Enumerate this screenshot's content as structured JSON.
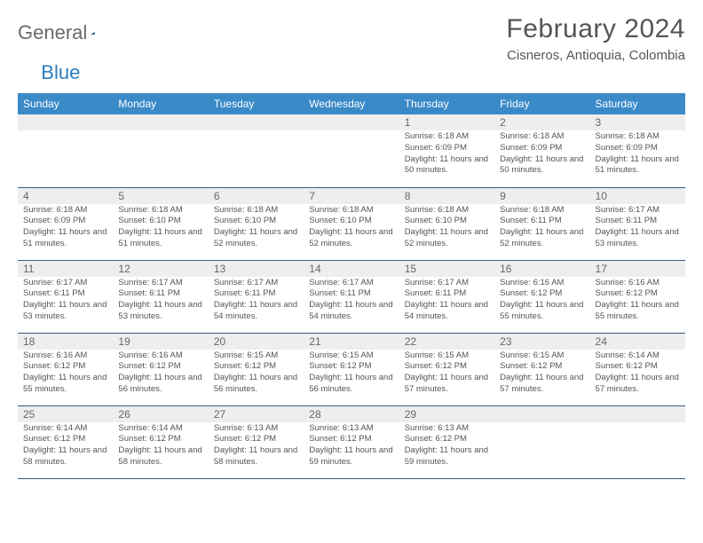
{
  "logo": {
    "word1": "General",
    "word2": "Blue",
    "triangle_color": "#2d7dbd"
  },
  "title": "February 2024",
  "location": "Cisneros, Antioquia, Colombia",
  "header": {
    "background": "#3a8ac8",
    "text_color": "#ffffff",
    "days": [
      "Sunday",
      "Monday",
      "Tuesday",
      "Wednesday",
      "Thursday",
      "Friday",
      "Saturday"
    ]
  },
  "grid": {
    "daynum_bg": "#eeeeee",
    "border_color": "#3a5a7a",
    "body_text_color": "#555555",
    "font_size_label": 12,
    "font_size_body": 9.5
  },
  "weeks": [
    [
      {
        "n": "",
        "lines": []
      },
      {
        "n": "",
        "lines": []
      },
      {
        "n": "",
        "lines": []
      },
      {
        "n": "",
        "lines": []
      },
      {
        "n": "1",
        "lines": [
          "Sunrise: 6:18 AM",
          "Sunset: 6:09 PM",
          "Daylight: 11 hours and 50 minutes."
        ]
      },
      {
        "n": "2",
        "lines": [
          "Sunrise: 6:18 AM",
          "Sunset: 6:09 PM",
          "Daylight: 11 hours and 50 minutes."
        ]
      },
      {
        "n": "3",
        "lines": [
          "Sunrise: 6:18 AM",
          "Sunset: 6:09 PM",
          "Daylight: 11 hours and 51 minutes."
        ]
      }
    ],
    [
      {
        "n": "4",
        "lines": [
          "Sunrise: 6:18 AM",
          "Sunset: 6:09 PM",
          "Daylight: 11 hours and 51 minutes."
        ]
      },
      {
        "n": "5",
        "lines": [
          "Sunrise: 6:18 AM",
          "Sunset: 6:10 PM",
          "Daylight: 11 hours and 51 minutes."
        ]
      },
      {
        "n": "6",
        "lines": [
          "Sunrise: 6:18 AM",
          "Sunset: 6:10 PM",
          "Daylight: 11 hours and 52 minutes."
        ]
      },
      {
        "n": "7",
        "lines": [
          "Sunrise: 6:18 AM",
          "Sunset: 6:10 PM",
          "Daylight: 11 hours and 52 minutes."
        ]
      },
      {
        "n": "8",
        "lines": [
          "Sunrise: 6:18 AM",
          "Sunset: 6:10 PM",
          "Daylight: 11 hours and 52 minutes."
        ]
      },
      {
        "n": "9",
        "lines": [
          "Sunrise: 6:18 AM",
          "Sunset: 6:11 PM",
          "Daylight: 11 hours and 52 minutes."
        ]
      },
      {
        "n": "10",
        "lines": [
          "Sunrise: 6:17 AM",
          "Sunset: 6:11 PM",
          "Daylight: 11 hours and 53 minutes."
        ]
      }
    ],
    [
      {
        "n": "11",
        "lines": [
          "Sunrise: 6:17 AM",
          "Sunset: 6:11 PM",
          "Daylight: 11 hours and 53 minutes."
        ]
      },
      {
        "n": "12",
        "lines": [
          "Sunrise: 6:17 AM",
          "Sunset: 6:11 PM",
          "Daylight: 11 hours and 53 minutes."
        ]
      },
      {
        "n": "13",
        "lines": [
          "Sunrise: 6:17 AM",
          "Sunset: 6:11 PM",
          "Daylight: 11 hours and 54 minutes."
        ]
      },
      {
        "n": "14",
        "lines": [
          "Sunrise: 6:17 AM",
          "Sunset: 6:11 PM",
          "Daylight: 11 hours and 54 minutes."
        ]
      },
      {
        "n": "15",
        "lines": [
          "Sunrise: 6:17 AM",
          "Sunset: 6:11 PM",
          "Daylight: 11 hours and 54 minutes."
        ]
      },
      {
        "n": "16",
        "lines": [
          "Sunrise: 6:16 AM",
          "Sunset: 6:12 PM",
          "Daylight: 11 hours and 55 minutes."
        ]
      },
      {
        "n": "17",
        "lines": [
          "Sunrise: 6:16 AM",
          "Sunset: 6:12 PM",
          "Daylight: 11 hours and 55 minutes."
        ]
      }
    ],
    [
      {
        "n": "18",
        "lines": [
          "Sunrise: 6:16 AM",
          "Sunset: 6:12 PM",
          "Daylight: 11 hours and 55 minutes."
        ]
      },
      {
        "n": "19",
        "lines": [
          "Sunrise: 6:16 AM",
          "Sunset: 6:12 PM",
          "Daylight: 11 hours and 56 minutes."
        ]
      },
      {
        "n": "20",
        "lines": [
          "Sunrise: 6:15 AM",
          "Sunset: 6:12 PM",
          "Daylight: 11 hours and 56 minutes."
        ]
      },
      {
        "n": "21",
        "lines": [
          "Sunrise: 6:15 AM",
          "Sunset: 6:12 PM",
          "Daylight: 11 hours and 56 minutes."
        ]
      },
      {
        "n": "22",
        "lines": [
          "Sunrise: 6:15 AM",
          "Sunset: 6:12 PM",
          "Daylight: 11 hours and 57 minutes."
        ]
      },
      {
        "n": "23",
        "lines": [
          "Sunrise: 6:15 AM",
          "Sunset: 6:12 PM",
          "Daylight: 11 hours and 57 minutes."
        ]
      },
      {
        "n": "24",
        "lines": [
          "Sunrise: 6:14 AM",
          "Sunset: 6:12 PM",
          "Daylight: 11 hours and 57 minutes."
        ]
      }
    ],
    [
      {
        "n": "25",
        "lines": [
          "Sunrise: 6:14 AM",
          "Sunset: 6:12 PM",
          "Daylight: 11 hours and 58 minutes."
        ]
      },
      {
        "n": "26",
        "lines": [
          "Sunrise: 6:14 AM",
          "Sunset: 6:12 PM",
          "Daylight: 11 hours and 58 minutes."
        ]
      },
      {
        "n": "27",
        "lines": [
          "Sunrise: 6:13 AM",
          "Sunset: 6:12 PM",
          "Daylight: 11 hours and 58 minutes."
        ]
      },
      {
        "n": "28",
        "lines": [
          "Sunrise: 6:13 AM",
          "Sunset: 6:12 PM",
          "Daylight: 11 hours and 59 minutes."
        ]
      },
      {
        "n": "29",
        "lines": [
          "Sunrise: 6:13 AM",
          "Sunset: 6:12 PM",
          "Daylight: 11 hours and 59 minutes."
        ]
      },
      {
        "n": "",
        "lines": []
      },
      {
        "n": "",
        "lines": []
      }
    ]
  ]
}
